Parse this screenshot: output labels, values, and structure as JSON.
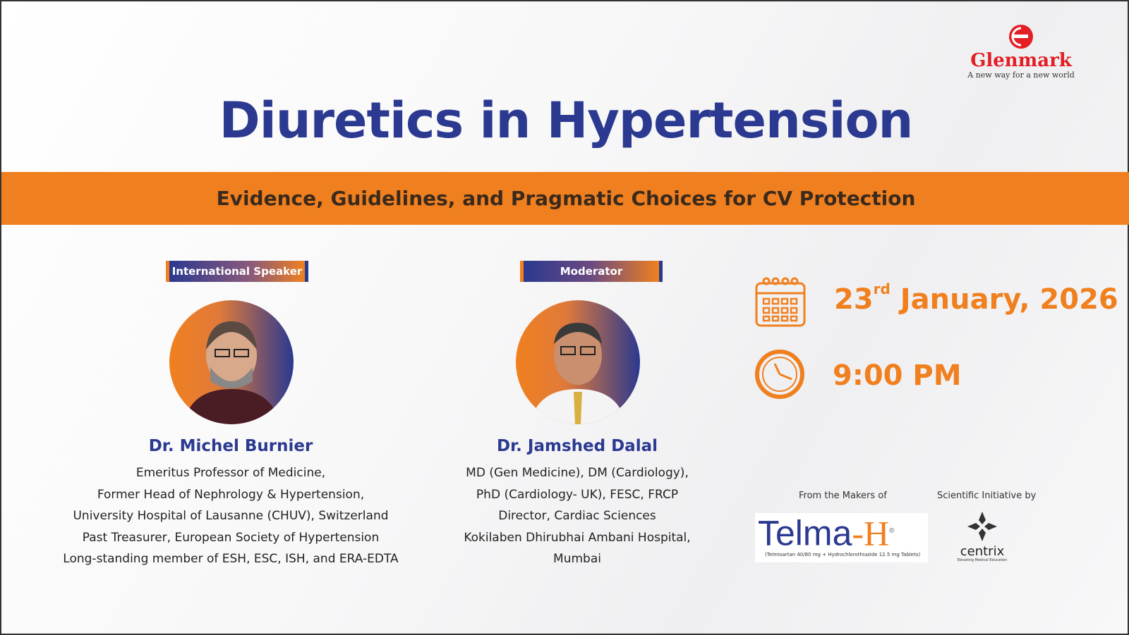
{
  "brand": {
    "name": "Glenmark",
    "tagline": "A new way for a new world",
    "color": "#e31e24"
  },
  "title": "Diuretics in Hypertension",
  "subtitle": "Evidence, Guidelines, and Pragmatic Choices for CV Protection",
  "speakers": [
    {
      "role": "International Speaker",
      "name": "Dr. Michel Burnier",
      "details": [
        "Emeritus Professor of Medicine,",
        "Former Head of Nephrology & Hypertension,",
        "University Hospital of Lausanne (CHUV), Switzerland",
        "Past Treasurer, European Society of Hypertension",
        "Long-standing member of ESH, ESC, ISH, and ERA-EDTA"
      ]
    },
    {
      "role": "Moderator",
      "name": "Dr. Jamshed Dalal",
      "details": [
        "MD (Gen Medicine), DM (Cardiology),",
        "PhD (Cardiology- UK), FESC, FRCP",
        "Director, Cardiac Sciences",
        "Kokilaben Dhirubhai Ambani Hospital,",
        "Mumbai"
      ]
    }
  ],
  "event": {
    "day": "23",
    "day_suffix": "rd",
    "month_year": "January, 2026",
    "time": "9:00 PM",
    "icons": [
      "calendar-icon",
      "clock-icon"
    ]
  },
  "sponsors": {
    "makers_label": "From the Makers of",
    "product": {
      "name_a": "Telma",
      "name_b": "-H",
      "reg": "®",
      "desc": "(Telmisartan 40/80 mg + Hydrochlorothiazide 12.5 mg Tablets)"
    },
    "initiative_label": "Scientific Initiative by",
    "initiative": {
      "name": "centrix",
      "tagline": "Elevating Medical Education",
      "reg": "®"
    }
  },
  "colors": {
    "primary": "#2b3990",
    "accent": "#f0801f"
  }
}
